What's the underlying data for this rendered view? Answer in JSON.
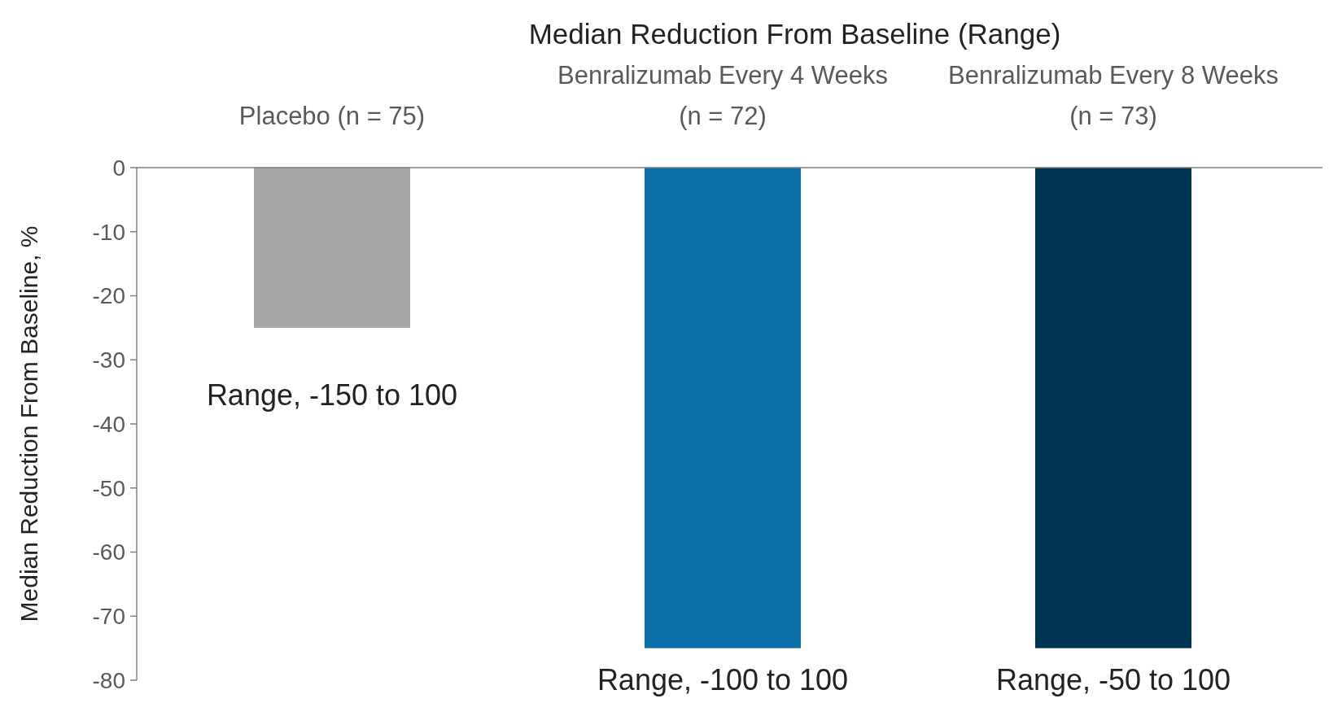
{
  "chart_data": {
    "type": "bar",
    "title": "Median Reduction From Baseline (Range)",
    "ylabel": "Median Reduction From Baseline, %",
    "categories": [
      "Placebo (n = 75)",
      "Benralizumab Every 4 Weeks (n = 72)",
      "Benralizumab Every 8 Weeks (n = 73)"
    ],
    "values": [
      -25,
      -75,
      -75
    ],
    "colors": [
      "#a5a5a5",
      "#0a6ea8",
      "#003654"
    ],
    "ylim": [
      -80,
      0
    ],
    "yticks": [
      0,
      -10,
      -20,
      -30,
      -40,
      -50,
      -60,
      -70,
      -80
    ],
    "grid": false,
    "annotations": [
      {
        "text": "Range, -150 to 100",
        "x": "Placebo (n = 75)",
        "y": -25
      },
      {
        "text": "Range, -100 to 100",
        "x": "Benralizumab Every 4 Weeks (n = 72)",
        "y": -75
      },
      {
        "text": "Range, -50 to 100",
        "x": "Benralizumab Every 8 Weeks (n = 73)",
        "y": -75
      }
    ]
  }
}
